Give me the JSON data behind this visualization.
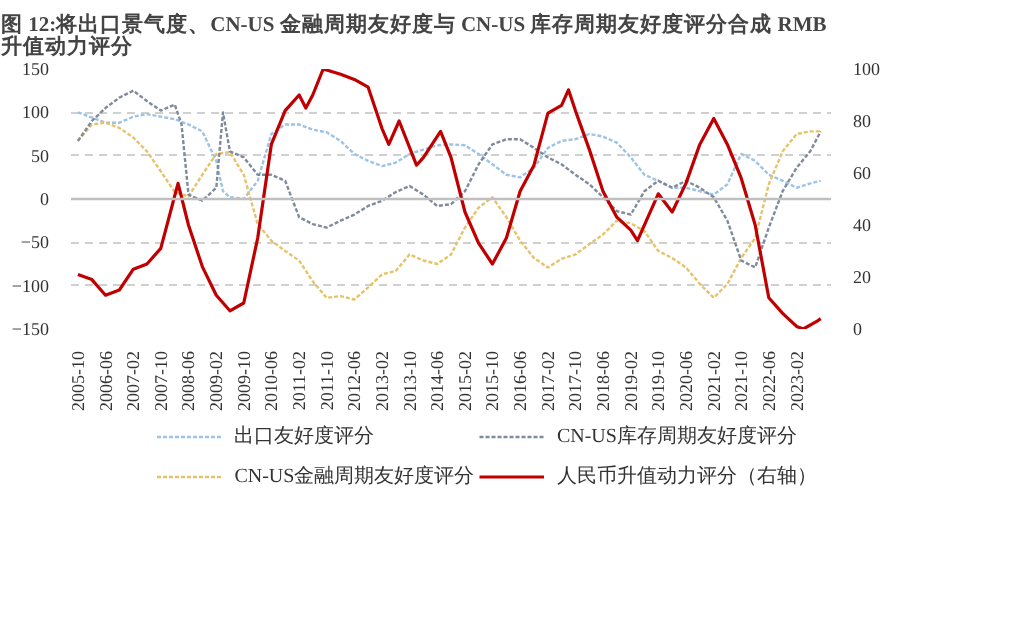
{
  "chart_data": {
    "type": "line",
    "title": "图 12:将出口景气度、CN-US 金融周期友好度与 CN-US 库存周期友好度评分合成 RMB 升值动力评分",
    "xlim": [
      "2005-08",
      "2023-12"
    ],
    "xticks": [
      "2005-10",
      "2006-06",
      "2007-02",
      "2007-10",
      "2008-06",
      "2009-02",
      "2009-10",
      "2010-06",
      "2011-02",
      "2011-10",
      "2012-06",
      "2013-02",
      "2013-10",
      "2014-06",
      "2015-02",
      "2015-10",
      "2016-06",
      "2017-02",
      "2017-10",
      "2018-06",
      "2019-02",
      "2019-10",
      "2020-06",
      "2021-02",
      "2021-10",
      "2022-06",
      "2023-02"
    ],
    "ylim": [
      -150,
      150
    ],
    "yticks": [
      -150,
      -100,
      -50,
      0,
      50,
      100,
      150
    ],
    "y2lim": [
      0,
      100
    ],
    "y2ticks": [
      0,
      20,
      40,
      60,
      80,
      100
    ],
    "grid": "y",
    "legend": "bottom",
    "marker": "none",
    "ref_lines": [
      {
        "axis": "y",
        "value": 0,
        "color": "#bfbfbf",
        "line_style": "solid"
      }
    ],
    "series": [
      {
        "name": "出口友好度评分",
        "color": "#9dc3e6",
        "line_style": "dotted",
        "x": [
          "2005-10",
          "2006-02",
          "2006-06",
          "2006-10",
          "2007-02",
          "2007-06",
          "2007-10",
          "2008-02",
          "2008-06",
          "2008-10",
          "2009-02",
          "2009-04",
          "2009-06",
          "2009-10",
          "2010-02",
          "2010-06",
          "2010-10",
          "2011-02",
          "2011-06",
          "2011-10",
          "2012-02",
          "2012-06",
          "2012-10",
          "2013-02",
          "2013-06",
          "2013-10",
          "2014-02",
          "2014-06",
          "2014-10",
          "2015-02",
          "2015-06",
          "2015-10",
          "2016-02",
          "2016-06",
          "2016-10",
          "2017-02",
          "2017-06",
          "2017-10",
          "2018-02",
          "2018-06",
          "2018-10",
          "2019-02",
          "2019-06",
          "2019-10",
          "2020-02",
          "2020-06",
          "2020-10",
          "2021-02",
          "2021-06",
          "2021-10",
          "2022-02",
          "2022-06",
          "2022-10",
          "2023-02",
          "2023-06",
          "2023-09"
        ],
        "values": [
          100,
          94,
          88,
          88,
          95,
          98,
          95,
          92,
          86,
          78,
          44,
          9,
          2,
          0,
          21,
          75,
          86,
          86,
          80,
          77,
          67,
          52,
          44,
          38,
          42,
          52,
          57,
          62,
          63,
          62,
          52,
          40,
          28,
          25,
          36,
          59,
          67,
          69,
          75,
          72,
          65,
          48,
          28,
          21,
          13,
          13,
          9,
          5,
          17,
          52,
          44,
          28,
          21,
          13,
          18,
          21
        ]
      },
      {
        "name": "CN-US金融周期友好度评分",
        "color": "#e6c36a",
        "line_style": "dotted",
        "x": [
          "2005-10",
          "2006-02",
          "2006-06",
          "2006-10",
          "2007-02",
          "2007-06",
          "2007-10",
          "2008-02",
          "2008-06",
          "2008-10",
          "2009-02",
          "2009-06",
          "2009-10",
          "2010-02",
          "2010-06",
          "2010-10",
          "2011-02",
          "2011-06",
          "2011-10",
          "2012-02",
          "2012-06",
          "2012-10",
          "2013-02",
          "2013-06",
          "2013-10",
          "2014-02",
          "2014-06",
          "2014-10",
          "2015-02",
          "2015-06",
          "2015-10",
          "2016-02",
          "2016-06",
          "2016-10",
          "2017-02",
          "2017-06",
          "2017-10",
          "2018-02",
          "2018-06",
          "2018-10",
          "2019-02",
          "2019-06",
          "2019-10",
          "2020-02",
          "2020-06",
          "2020-10",
          "2021-02",
          "2021-06",
          "2021-10",
          "2022-02",
          "2022-06",
          "2022-10",
          "2023-02",
          "2023-06",
          "2023-09"
        ],
        "values": [
          67,
          86,
          88,
          82,
          71,
          55,
          32,
          8,
          3,
          28,
          52,
          54,
          28,
          -29,
          -48,
          -60,
          -71,
          -95,
          -114,
          -112,
          -116,
          -102,
          -87,
          -83,
          -64,
          -71,
          -75,
          -64,
          -33,
          -10,
          2,
          -21,
          -48,
          -68,
          -79,
          -69,
          -64,
          -52,
          -41,
          -25,
          -28,
          -37,
          -60,
          -68,
          -79,
          -98,
          -114,
          -98,
          -68,
          -45,
          17,
          55,
          75,
          78,
          78
        ]
      },
      {
        "name": "CN-US库存周期友好度评分",
        "color": "#7f8a9a",
        "line_style": "dotted",
        "x": [
          "2005-10",
          "2006-02",
          "2006-06",
          "2006-10",
          "2007-02",
          "2007-06",
          "2007-10",
          "2008-02",
          "2008-04",
          "2008-06",
          "2008-10",
          "2009-02",
          "2009-04",
          "2009-06",
          "2009-10",
          "2010-02",
          "2010-06",
          "2010-10",
          "2011-02",
          "2011-06",
          "2011-10",
          "2012-02",
          "2012-06",
          "2012-10",
          "2013-02",
          "2013-06",
          "2013-10",
          "2014-02",
          "2014-06",
          "2014-10",
          "2015-02",
          "2015-06",
          "2015-10",
          "2016-02",
          "2016-06",
          "2016-10",
          "2017-02",
          "2017-06",
          "2017-10",
          "2018-02",
          "2018-06",
          "2018-10",
          "2019-02",
          "2019-06",
          "2019-10",
          "2020-02",
          "2020-06",
          "2020-10",
          "2021-02",
          "2021-06",
          "2021-10",
          "2022-02",
          "2022-06",
          "2022-10",
          "2023-02",
          "2023-06",
          "2023-09"
        ],
        "values": [
          67,
          90,
          105,
          117,
          125,
          113,
          102,
          109,
          86,
          5,
          -2,
          13,
          100,
          55,
          48,
          28,
          28,
          21,
          -21,
          -29,
          -33,
          -25,
          -18,
          -8,
          -2,
          8,
          15,
          5,
          -8,
          -6,
          9,
          40,
          63,
          69,
          69,
          59,
          48,
          40,
          28,
          17,
          2,
          -14,
          -18,
          9,
          21,
          13,
          21,
          13,
          2,
          -25,
          -71,
          -79,
          -33,
          9,
          36,
          55,
          78
        ]
      },
      {
        "name": "人民币升值动力评分（右轴）",
        "color": "#c00000",
        "line_style": "solid",
        "axis": "y2",
        "x": [
          "2005-10",
          "2006-02",
          "2006-06",
          "2006-10",
          "2007-02",
          "2007-06",
          "2007-10",
          "2008-03",
          "2008-06",
          "2008-10",
          "2009-02",
          "2009-06",
          "2009-10",
          "2010-02",
          "2010-06",
          "2010-10",
          "2011-02",
          "2011-04",
          "2011-06",
          "2011-09",
          "2012-02",
          "2012-06",
          "2012-10",
          "2013-02",
          "2013-04",
          "2013-07",
          "2013-12",
          "2014-02",
          "2014-07",
          "2014-10",
          "2015-02",
          "2015-06",
          "2015-10",
          "2016-02",
          "2016-06",
          "2016-10",
          "2017-02",
          "2017-06",
          "2017-08",
          "2017-10",
          "2018-02",
          "2018-06",
          "2018-10",
          "2019-02",
          "2019-04",
          "2019-10",
          "2020-02",
          "2020-06",
          "2020-10",
          "2021-02",
          "2021-06",
          "2021-10",
          "2022-02",
          "2022-06",
          "2022-10",
          "2023-02",
          "2023-04",
          "2023-08",
          "2023-09"
        ],
        "values": [
          21,
          19,
          13,
          15,
          23,
          25,
          31,
          56,
          40,
          24,
          13,
          7,
          10,
          35,
          71,
          84,
          90,
          85,
          90,
          100,
          98,
          96,
          93,
          77,
          71,
          80,
          63,
          66,
          76,
          66,
          45,
          33,
          25,
          35,
          53,
          63,
          83,
          86,
          92,
          84,
          69,
          53,
          43,
          38,
          34,
          52,
          45,
          56,
          71,
          81,
          71,
          58,
          40,
          12,
          6,
          1,
          0,
          3,
          4
        ]
      }
    ]
  }
}
